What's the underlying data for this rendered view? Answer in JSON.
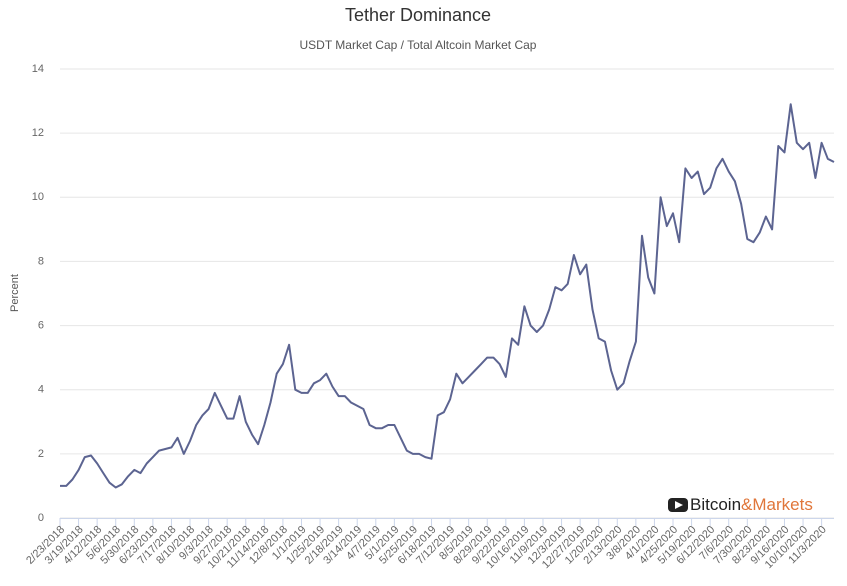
{
  "chart_data": {
    "type": "line",
    "title": "Tether Dominance",
    "subtitle": "USDT Market Cap / Total Altcoin Market Cap",
    "ylabel": "Percent",
    "categories": [
      "2/23/2018",
      null,
      null,
      "3/19/2018",
      null,
      null,
      "4/12/2018",
      null,
      null,
      "5/6/2018",
      null,
      null,
      "5/30/2018",
      null,
      null,
      "6/23/2018",
      null,
      null,
      "7/17/2018",
      null,
      null,
      "8/10/2018",
      null,
      null,
      "9/3/2018",
      null,
      null,
      "9/27/2018",
      null,
      null,
      "10/21/2018",
      null,
      null,
      "11/14/2018",
      null,
      null,
      "12/8/2018",
      null,
      null,
      "1/1/2019",
      null,
      null,
      "1/25/2019",
      null,
      null,
      "2/18/2019",
      null,
      null,
      "3/14/2019",
      null,
      null,
      "4/7/2019",
      null,
      null,
      "5/1/2019",
      null,
      null,
      "5/25/2019",
      null,
      null,
      "6/18/2019",
      null,
      null,
      "7/12/2019",
      null,
      null,
      "8/5/2019",
      null,
      null,
      "8/29/2019",
      null,
      null,
      "9/22/2019",
      null,
      null,
      "10/16/2019",
      null,
      null,
      "11/9/2019",
      null,
      null,
      "12/3/2019",
      null,
      null,
      "12/27/2019",
      null,
      null,
      "1/20/2020",
      null,
      null,
      "2/13/2020",
      null,
      null,
      "3/8/2020",
      null,
      null,
      "4/1/2020",
      null,
      null,
      "4/25/2020",
      null,
      null,
      "5/19/2020",
      null,
      null,
      "6/12/2020",
      null,
      null,
      "7/6/2020",
      null,
      null,
      "7/30/2020",
      null,
      null,
      "8/23/2020",
      null,
      null,
      "9/16/2020",
      null,
      null,
      "10/10/2020",
      null,
      null,
      "11/3/2020",
      null,
      null
    ],
    "series": [
      {
        "name": "Tether Dominance",
        "color": "#5c6491",
        "values": [
          1.0,
          1.0,
          1.2,
          1.5,
          1.9,
          1.95,
          1.7,
          1.4,
          1.1,
          0.95,
          1.05,
          1.3,
          1.5,
          1.4,
          1.7,
          1.9,
          2.1,
          2.15,
          2.2,
          2.5,
          2.0,
          2.4,
          2.9,
          3.2,
          3.4,
          3.9,
          3.5,
          3.1,
          3.1,
          3.8,
          3.0,
          2.6,
          2.3,
          2.9,
          3.6,
          4.5,
          4.8,
          5.4,
          4.0,
          3.9,
          3.9,
          4.2,
          4.3,
          4.5,
          4.1,
          3.8,
          3.8,
          3.6,
          3.5,
          3.4,
          2.9,
          2.8,
          2.8,
          2.9,
          2.9,
          2.5,
          2.1,
          2.0,
          2.0,
          1.9,
          1.85,
          3.2,
          3.3,
          3.7,
          4.5,
          4.2,
          4.4,
          4.6,
          4.8,
          5.0,
          5.0,
          4.8,
          4.4,
          5.6,
          5.4,
          6.6,
          6.0,
          5.8,
          6.0,
          6.5,
          7.2,
          7.1,
          7.3,
          8.2,
          7.6,
          7.9,
          6.5,
          5.6,
          5.5,
          4.6,
          4.0,
          4.2,
          4.9,
          5.5,
          8.8,
          7.5,
          7.0,
          10.0,
          9.1,
          9.5,
          8.6,
          10.9,
          10.6,
          10.8,
          10.1,
          10.3,
          10.9,
          11.2,
          10.8,
          10.5,
          9.8,
          8.7,
          8.6,
          8.9,
          9.4,
          9.0,
          11.6,
          11.4,
          12.9,
          11.7,
          11.5,
          11.7,
          10.6,
          11.7,
          11.2,
          11.1
        ]
      }
    ],
    "ylim": [
      0,
      14
    ],
    "yticks": [
      0,
      2,
      4,
      6,
      8,
      10,
      12,
      14
    ],
    "grid": true,
    "legend": false
  },
  "logo": {
    "text": "Bitcoin",
    "accent": "&Markets"
  }
}
